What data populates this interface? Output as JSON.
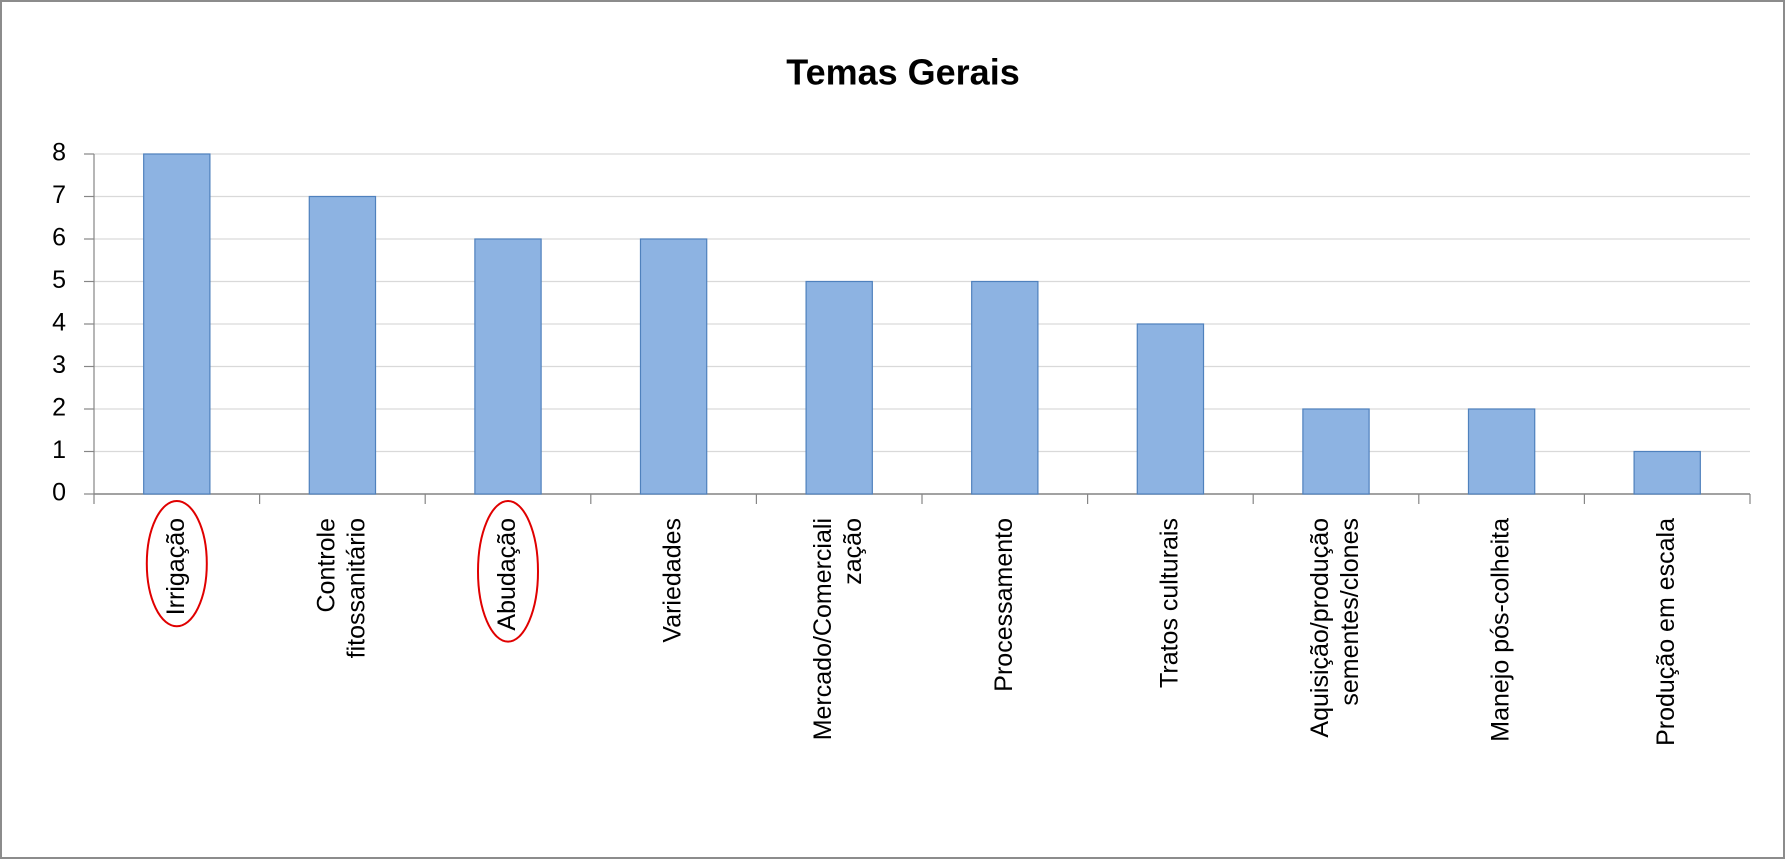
{
  "chart_data": {
    "type": "bar",
    "title": "Temas Gerais",
    "categories": [
      "Irrigação",
      "Controle\nfitossanitário",
      "Abudação",
      "Variedades",
      "Mercado/Comerciali\nzação",
      "Processamento",
      "Tratos culturais",
      "Aquisição/produção\nsementes/clones",
      "Manejo pós-colheita",
      "Produção em escala"
    ],
    "values": [
      8,
      7,
      6,
      6,
      5,
      5,
      4,
      2,
      2,
      1
    ],
    "color": "#8db3e2",
    "edge_color": "#4f81bd",
    "ylim": [
      0,
      8
    ],
    "yticks": [
      0,
      1,
      2,
      3,
      4,
      5,
      6,
      7,
      8
    ],
    "grid": true,
    "circled": [
      0,
      2
    ],
    "circle_color": "#e00000"
  }
}
